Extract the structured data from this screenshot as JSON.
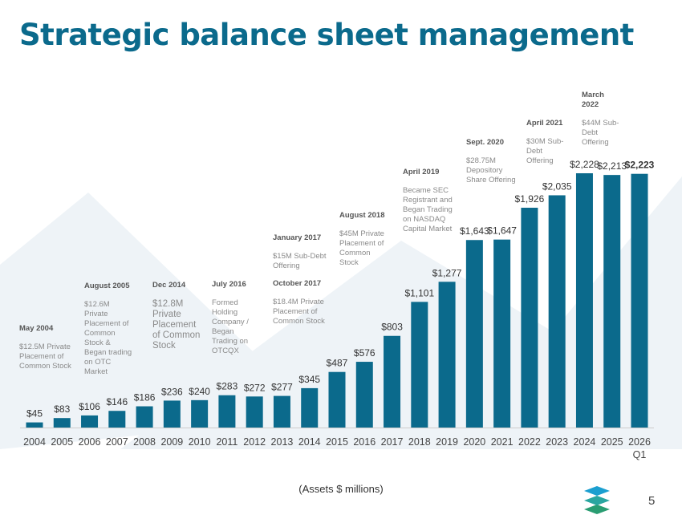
{
  "title": "Strategic balance sheet management",
  "page_number": "5",
  "chart_data": {
    "type": "bar",
    "categories": [
      "2004",
      "2005",
      "2006",
      "2007",
      "2008",
      "2009",
      "2010",
      "2011",
      "2012",
      "2013",
      "2014",
      "2015",
      "2016",
      "2017",
      "2018",
      "2019",
      "2020",
      "2021",
      "2022",
      "2023",
      "2024",
      "2025",
      "2026\nQ1"
    ],
    "values": [
      45,
      83,
      106,
      146,
      186,
      236,
      240,
      283,
      272,
      277,
      345,
      487,
      576,
      803,
      1101,
      1277,
      1643,
      1647,
      1926,
      2035,
      2228,
      2213,
      2223
    ],
    "data_labels": [
      "$45",
      "$83",
      "$106",
      "$146",
      "$186",
      "$236",
      "$240",
      "$283",
      "$272",
      "$277",
      "$345",
      "$487",
      "$576",
      "$803",
      "$1,101",
      "$1,277",
      "$1,643",
      "$1,647",
      "$1,926",
      "$2,035",
      "$2,228",
      "$2,213",
      "$2,223"
    ],
    "xlabel": "(Assets $ millions)",
    "bar_color": "#0b6a8c",
    "grid": false
  },
  "annotations": [
    {
      "date": "May 2004",
      "text": "$12.5M Private Placement of Common Stock"
    },
    {
      "date": "August 2005",
      "text": "$12.6M Private Placement of Common Stock & Began trading on OTC Market"
    },
    {
      "date": "Dec 2014",
      "text": "$12.8M Private Placement of Common Stock"
    },
    {
      "date": "July 2016",
      "text": "Formed Holding Company / Began Trading on OTCQX"
    },
    {
      "date": "January 2017",
      "text": "$15M Sub-Debt Offering"
    },
    {
      "date": "October 2017",
      "text": "$18.4M Private Placement of Common Stock"
    },
    {
      "date": "August 2018",
      "text": "$45M Private Placement of Common Stock"
    },
    {
      "date": "April 2019",
      "text": "Became SEC Registrant and Began Trading on NASDAQ Capital Market"
    },
    {
      "date": "Sept. 2020",
      "text": "$28.75M Depository Share Offering"
    },
    {
      "date": "April 2021",
      "text": "$30M Sub-Debt Offering"
    },
    {
      "date": "March 2022",
      "text": "$44M Sub-Debt Offering"
    }
  ]
}
